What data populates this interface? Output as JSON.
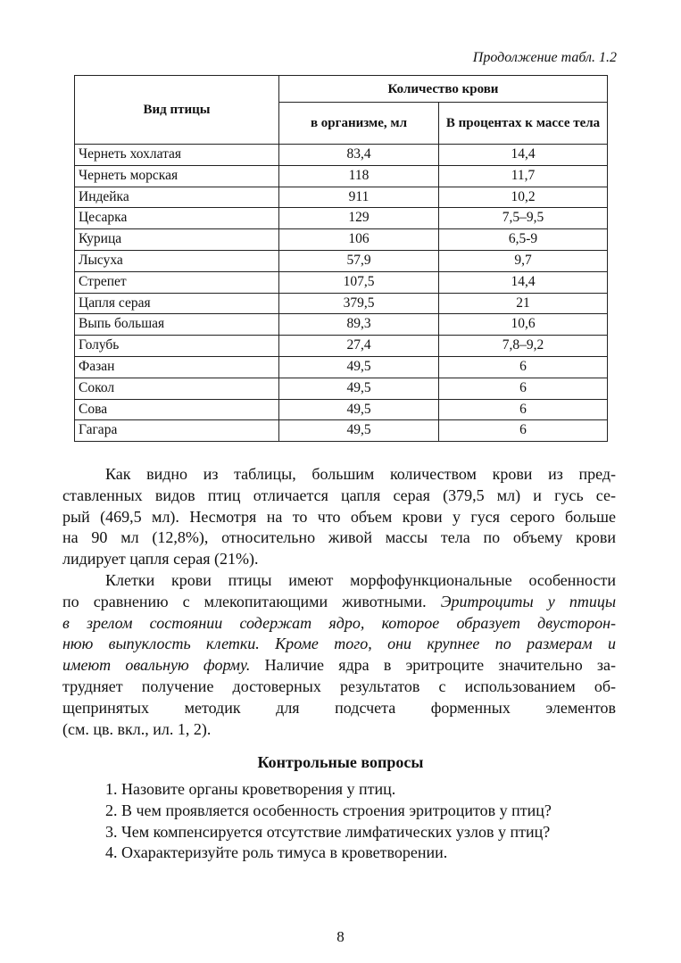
{
  "caption": "Продолжение табл. 1.2",
  "table": {
    "headers": {
      "species": "Вид птицы",
      "group": "Количество крови",
      "volume": "в организме, мл",
      "percent": "В процентах к массе тела"
    },
    "rows": [
      [
        "Чернеть хохлатая",
        "83,4",
        "14,4"
      ],
      [
        "Чернеть морская",
        "118",
        "11,7"
      ],
      [
        "Индейка",
        "911",
        "10,2"
      ],
      [
        "Цесарка",
        "129",
        "7,5–9,5"
      ],
      [
        "Курица",
        "106",
        "6,5-9"
      ],
      [
        "Лысуха",
        "57,9",
        "9,7"
      ],
      [
        "Стрепет",
        "107,5",
        "14,4"
      ],
      [
        "Цапля серая",
        "379,5",
        "21"
      ],
      [
        "Выпь большая",
        "89,3",
        "10,6"
      ],
      [
        "Голубь",
        "27,4",
        "7,8–9,2"
      ],
      [
        "Фазан",
        "49,5",
        "6"
      ],
      [
        "Сокол",
        "49,5",
        "6"
      ],
      [
        "Сова",
        "49,5",
        "6"
      ],
      [
        "Гагара",
        "49,5",
        "6"
      ]
    ]
  },
  "paragraph1": [
    "Как видно из таблицы, большим количеством крови из пред-",
    "ставленных видов птиц отличается цапля серая (379,5 мл) и гусь се-",
    "рый (469,5 мл). Несмотря на то что объем крови у гуся серого больше",
    "на 90 мл (12,8%), относительно живой массы тела по объему крови",
    "лидирует цапля серая (21%)."
  ],
  "paragraph2": {
    "l1": "Клетки крови птицы имеют морфофункциональные особенности",
    "l2a": "по сравнению с млекопитающими животными.",
    "l2b": "Эритроциты у птицы",
    "l3": "в зрелом состоянии содержат ядро, которое образует двусторон-",
    "l4": "нюю выпуклость клетки. Кроме того, они крупнее по размерам и",
    "l5a": "имеют овальную форму.",
    "l5b": "Наличие ядра в эритроците значительно за-",
    "l6": "трудняет получение достоверных результатов с использованием об-",
    "l7": "щепринятых методик для подсчета форменных элементов",
    "l8": "(см. цв. вкл., ил. 1, 2)."
  },
  "questions": {
    "title": "Контрольные вопросы",
    "items": [
      "1. Назовите органы кроветворения у птиц.",
      "2. В чем проявляется особенность строения эритроцитов у птиц?",
      "3. Чем компенсируется отсутствие лимфатических узлов у птиц?",
      "4. Охарактеризуйте роль тимуса в кроветворении."
    ]
  },
  "page_number": "8"
}
